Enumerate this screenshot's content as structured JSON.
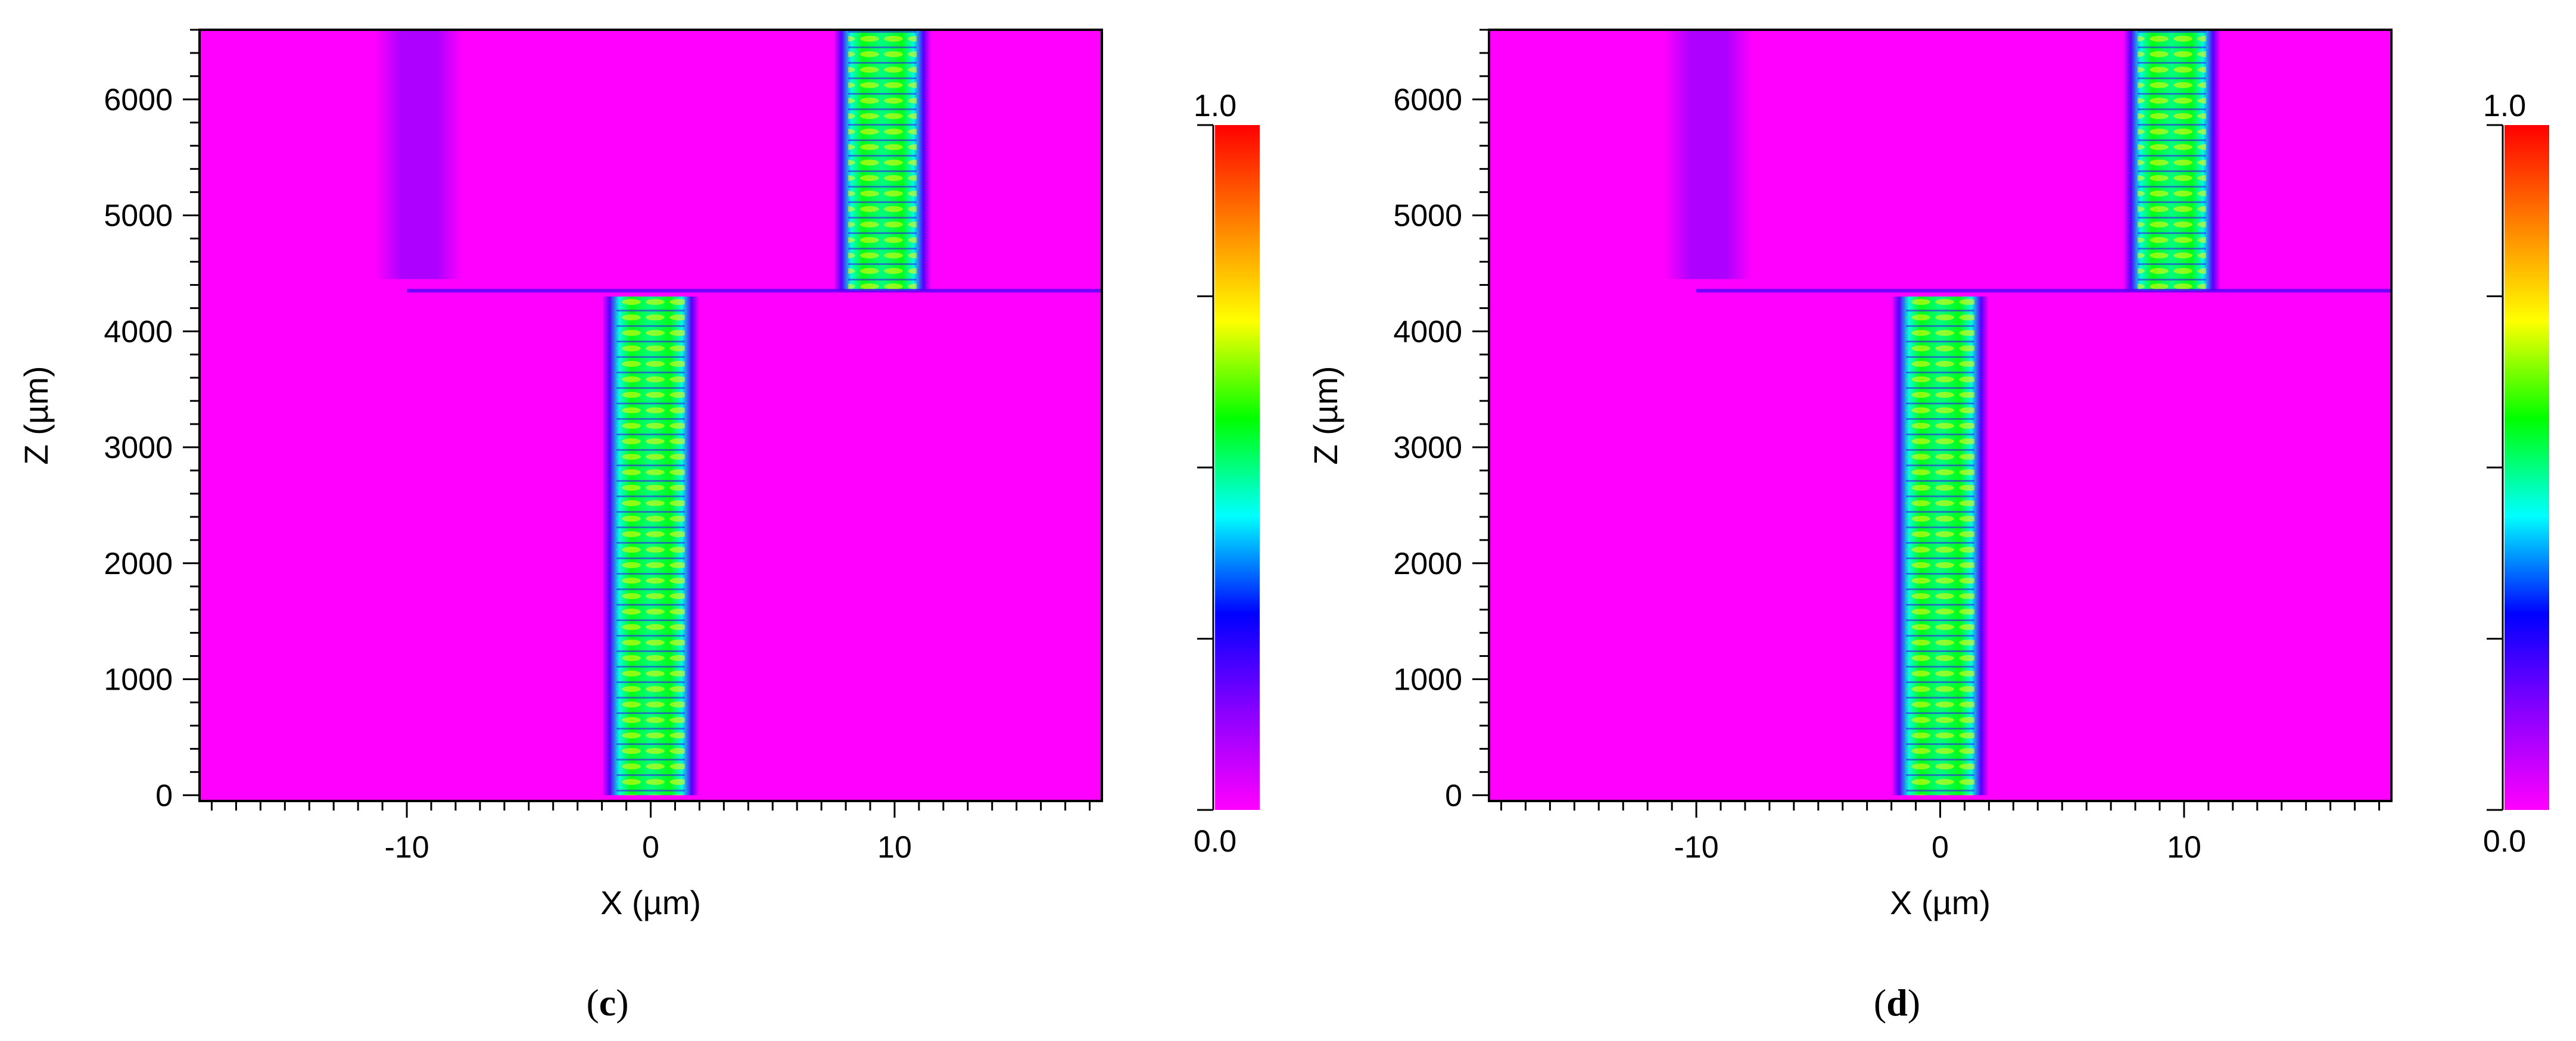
{
  "chart_data": [
    {
      "type": "heatmap",
      "panel_label": "c",
      "xlabel": "X (µm)",
      "ylabel": "Z (µm)",
      "xlim": [
        -18.5,
        18.5
      ],
      "ylim": [
        -50,
        6600
      ],
      "x_ticks": [
        -10,
        0,
        10
      ],
      "y_ticks": [
        0,
        1000,
        2000,
        3000,
        4000,
        5000,
        6000
      ],
      "colorbar": {
        "min_label": "0.0",
        "max_label": "1.0",
        "range": [
          0,
          1
        ]
      },
      "background_intensity": 0.0,
      "features": [
        {
          "name": "input-waveguide-beam",
          "x_center": 0,
          "x_half_width": 2.0,
          "z_start": 0,
          "z_end": 4300,
          "intensity": 0.55
        },
        {
          "name": "output-waveguide-beam",
          "x_center": 9.5,
          "x_half_width": 2.0,
          "z_start": 4350,
          "z_end": 6600,
          "intensity": 0.55
        },
        {
          "name": "faint-side-beam",
          "x_center": -9.5,
          "x_half_width": 1.8,
          "z_start": 4450,
          "z_end": 6600,
          "intensity": 0.1
        },
        {
          "name": "interface-line",
          "x_start": -10,
          "x_end": 18.5,
          "z": 4350,
          "intensity": 0.2
        }
      ]
    },
    {
      "type": "heatmap",
      "panel_label": "d",
      "xlabel": "X (µm)",
      "ylabel": "Z (µm)",
      "xlim": [
        -18.5,
        18.5
      ],
      "ylim": [
        -50,
        6600
      ],
      "x_ticks": [
        -10,
        0,
        10
      ],
      "y_ticks": [
        0,
        1000,
        2000,
        3000,
        4000,
        5000,
        6000
      ],
      "colorbar": {
        "min_label": "0.0",
        "max_label": "1.0",
        "range": [
          0,
          1
        ]
      },
      "background_intensity": 0.0,
      "features": [
        {
          "name": "input-waveguide-beam",
          "x_center": 0,
          "x_half_width": 2.0,
          "z_start": 0,
          "z_end": 4300,
          "intensity": 0.55
        },
        {
          "name": "output-waveguide-beam",
          "x_center": 9.5,
          "x_half_width": 2.0,
          "z_start": 4350,
          "z_end": 6600,
          "intensity": 0.55
        },
        {
          "name": "faint-side-beam",
          "x_center": -9.5,
          "x_half_width": 1.8,
          "z_start": 4450,
          "z_end": 6600,
          "intensity": 0.1
        },
        {
          "name": "interface-line",
          "x_start": -10,
          "x_end": 18.5,
          "z": 4350,
          "intensity": 0.2
        }
      ]
    }
  ],
  "colormap": [
    "#ff00ff",
    "#8a00ff",
    "#0000ff",
    "#00ffff",
    "#00ff00",
    "#ffff00",
    "#ff8000",
    "#ff0000"
  ]
}
